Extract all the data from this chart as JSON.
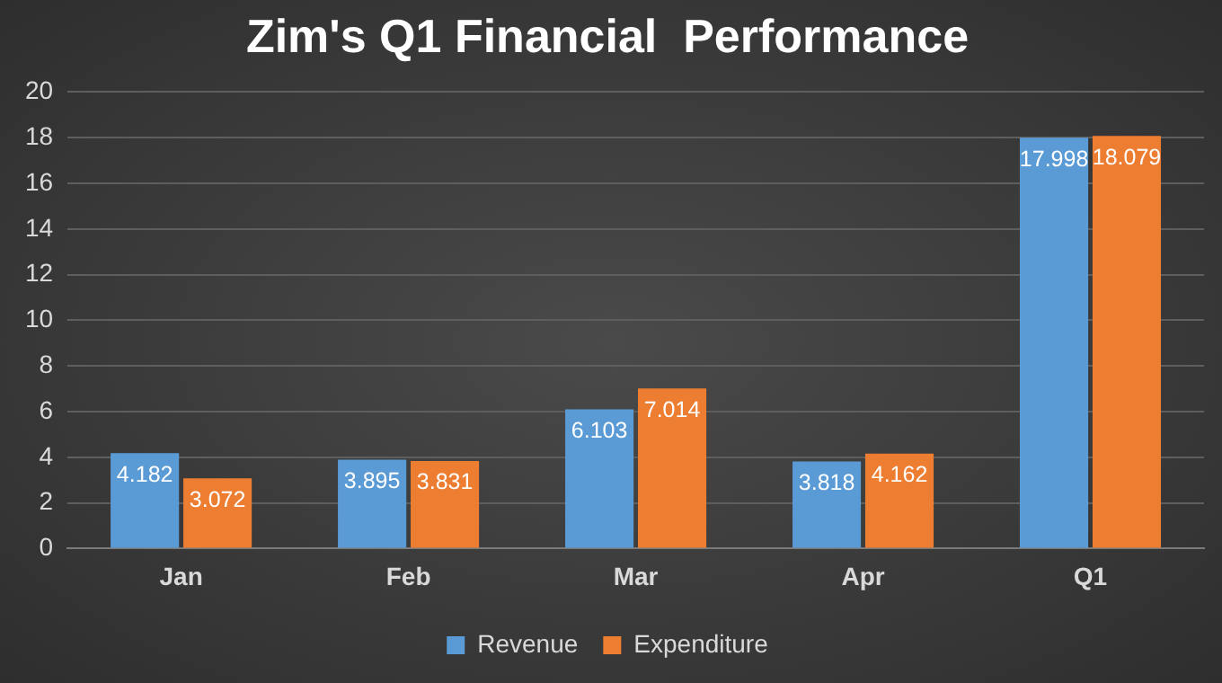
{
  "chart_data": {
    "type": "bar",
    "title": "Zim's Q1 Financial  Performance",
    "categories": [
      "Jan",
      "Feb",
      "Mar",
      "Apr",
      "Q1"
    ],
    "series": [
      {
        "name": "Revenue",
        "color": "#5b9bd5",
        "values": [
          4.182,
          3.895,
          6.103,
          3.818,
          17.998
        ]
      },
      {
        "name": "Expenditure",
        "color": "#ed7d31",
        "values": [
          3.072,
          3.831,
          7.014,
          4.162,
          18.079
        ]
      }
    ],
    "ylim": [
      0,
      20
    ],
    "yticks": [
      0,
      2,
      4,
      6,
      8,
      10,
      12,
      14,
      16,
      18,
      20
    ],
    "grid": "y",
    "legend": "bottom",
    "data_labels": true
  }
}
